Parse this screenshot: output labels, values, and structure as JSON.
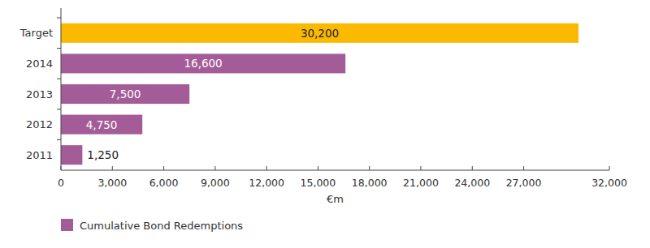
{
  "chart_data": {
    "type": "bar",
    "orientation": "horizontal",
    "categories": [
      "Target",
      "2014",
      "2013",
      "2012",
      "2011"
    ],
    "series": [
      {
        "name": "Cumulative Bond Redemptions",
        "color": "#a45c98",
        "colors": [
          "#fbba00",
          "#a45c98",
          "#a45c98",
          "#a45c98",
          "#a45c98"
        ],
        "values": [
          30200,
          16600,
          7500,
          4750,
          1250
        ],
        "value_labels": [
          "30,200",
          "16,600",
          "7,500",
          "4,750",
          "1,250"
        ]
      }
    ],
    "xlabel": "€m",
    "xlim": [
      0,
      32000
    ],
    "xticks": [
      0,
      {
        "value": 3000,
        "label": "3,000"
      },
      {
        "value": 6000,
        "label": "6,000"
      },
      {
        "value": 9000,
        "label": "9,000"
      },
      {
        "value": 12000,
        "label": "12,000"
      },
      {
        "value": 15000,
        "label": "15,000"
      },
      {
        "value": 18000,
        "label": "18,000"
      },
      {
        "value": 21000,
        "label": "21,000"
      },
      {
        "value": 24000,
        "label": "24,000"
      },
      {
        "value": 27000,
        "label": "27,000"
      },
      {
        "value": 32000,
        "label": "32,000"
      }
    ],
    "grid": false,
    "data_labels": true,
    "legend": "bottom"
  }
}
